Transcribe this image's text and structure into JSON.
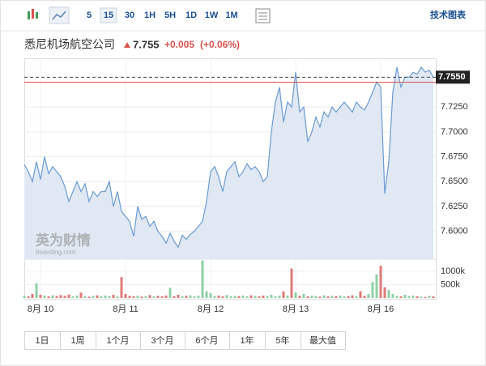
{
  "toolbar": {
    "intervals": [
      "5",
      "15",
      "30",
      "1H",
      "5H",
      "1D",
      "1W",
      "1M"
    ],
    "tools": "技术图表"
  },
  "header": {
    "name": "悉尼机场航空公司",
    "price": "7.755",
    "change": "+0.005",
    "change_pct": "(+0.06%)"
  },
  "watermark": {
    "brand": "英为财情",
    "site": "Investing.com"
  },
  "ranges": [
    "1日",
    "1周",
    "1个月",
    "3个月",
    "6个月",
    "1年",
    "5年",
    "最大值"
  ],
  "chart_data": [
    {
      "type": "area",
      "color": "#6a9bd1",
      "fill": "#dfe8f3",
      "categories": [
        null,
        null,
        null,
        null,
        "8月 10",
        null,
        null,
        null,
        null,
        null,
        null,
        null,
        null,
        null,
        null,
        null,
        null,
        null,
        null,
        null,
        null,
        null,
        null,
        null,
        null,
        "8月 11",
        null,
        null,
        null,
        null,
        null,
        null,
        null,
        null,
        null,
        null,
        null,
        null,
        null,
        null,
        null,
        null,
        null,
        null,
        null,
        null,
        "8月 12",
        null,
        null,
        null,
        null,
        null,
        null,
        null,
        null,
        null,
        null,
        null,
        null,
        null,
        null,
        null,
        null,
        null,
        null,
        null,
        null,
        "8月 13",
        null,
        null,
        null,
        null,
        null,
        null,
        null,
        null,
        null,
        null,
        null,
        null,
        null,
        null,
        null,
        null,
        null,
        null,
        null,
        null,
        "8月 16",
        null,
        null,
        null,
        null,
        null,
        null,
        null,
        null,
        null,
        null,
        null,
        null,
        null
      ],
      "values": [
        7.667,
        7.66,
        7.65,
        7.67,
        7.652,
        7.675,
        7.658,
        7.665,
        7.66,
        7.655,
        7.645,
        7.63,
        7.64,
        7.65,
        7.64,
        7.648,
        7.63,
        7.64,
        7.635,
        7.64,
        7.64,
        7.65,
        7.625,
        7.64,
        7.62,
        7.615,
        7.61,
        7.595,
        7.625,
        7.612,
        7.615,
        7.605,
        7.61,
        7.6,
        7.595,
        7.588,
        7.598,
        7.59,
        7.584,
        7.596,
        7.592,
        7.597,
        7.6,
        7.605,
        7.61,
        7.63,
        7.66,
        7.665,
        7.655,
        7.64,
        7.66,
        7.665,
        7.67,
        7.655,
        7.66,
        7.668,
        7.662,
        7.665,
        7.66,
        7.65,
        7.655,
        7.7,
        7.73,
        7.745,
        7.71,
        7.73,
        7.725,
        7.76,
        7.72,
        7.725,
        7.69,
        7.7,
        7.715,
        7.705,
        7.72,
        7.715,
        7.725,
        7.72,
        7.725,
        7.73,
        7.725,
        7.72,
        7.73,
        7.725,
        7.722,
        7.73,
        7.74,
        7.75,
        7.745,
        7.638,
        7.67,
        7.74,
        7.765,
        7.745,
        7.755,
        7.755,
        7.76,
        7.758,
        7.765,
        7.76,
        7.762,
        7.755
      ],
      "ylim": [
        7.572,
        7.774
      ],
      "yticks": [
        {
          "value": 7.6,
          "label": "7.6000"
        },
        {
          "value": 7.625,
          "label": "7.6250"
        },
        {
          "value": 7.65,
          "label": "7.6500"
        },
        {
          "value": 7.675,
          "label": "7.6750"
        },
        {
          "value": 7.7,
          "label": "7.7000"
        },
        {
          "value": 7.725,
          "label": "7.7250"
        }
      ],
      "last": {
        "value": 7.755,
        "label": "7.7550"
      },
      "reference": {
        "value": 7.75,
        "color": "#d9534f"
      },
      "grid": true
    },
    {
      "type": "volume",
      "up_color": "#8fd0a6",
      "down_color": "#e07a78",
      "values": [
        80,
        60,
        150,
        550,
        120,
        90,
        60,
        100,
        70,
        110,
        80,
        130,
        60,
        90,
        200,
        70,
        50,
        80,
        100,
        60,
        90,
        70,
        120,
        60,
        780,
        150,
        80,
        60,
        90,
        50,
        70,
        110,
        60,
        80,
        60,
        90,
        380,
        70,
        120,
        60,
        80,
        100,
        60,
        90,
        1400,
        250,
        180,
        70,
        90,
        60,
        110,
        60,
        80,
        70,
        90,
        60,
        100,
        80,
        60,
        90,
        70,
        120,
        60,
        80,
        250,
        90,
        1100,
        200,
        80,
        150,
        60,
        90,
        70,
        50,
        100,
        60,
        80,
        70,
        90,
        60,
        70,
        100,
        60,
        250,
        80,
        150,
        600,
        880,
        1200,
        400,
        300,
        150,
        80,
        60,
        120,
        70,
        90,
        60,
        50,
        40,
        80,
        60
      ],
      "ylim": [
        0,
        1450
      ],
      "yticks": [
        {
          "value": 500,
          "label": "500k"
        },
        {
          "value": 1000,
          "label": "1000k"
        }
      ]
    }
  ]
}
